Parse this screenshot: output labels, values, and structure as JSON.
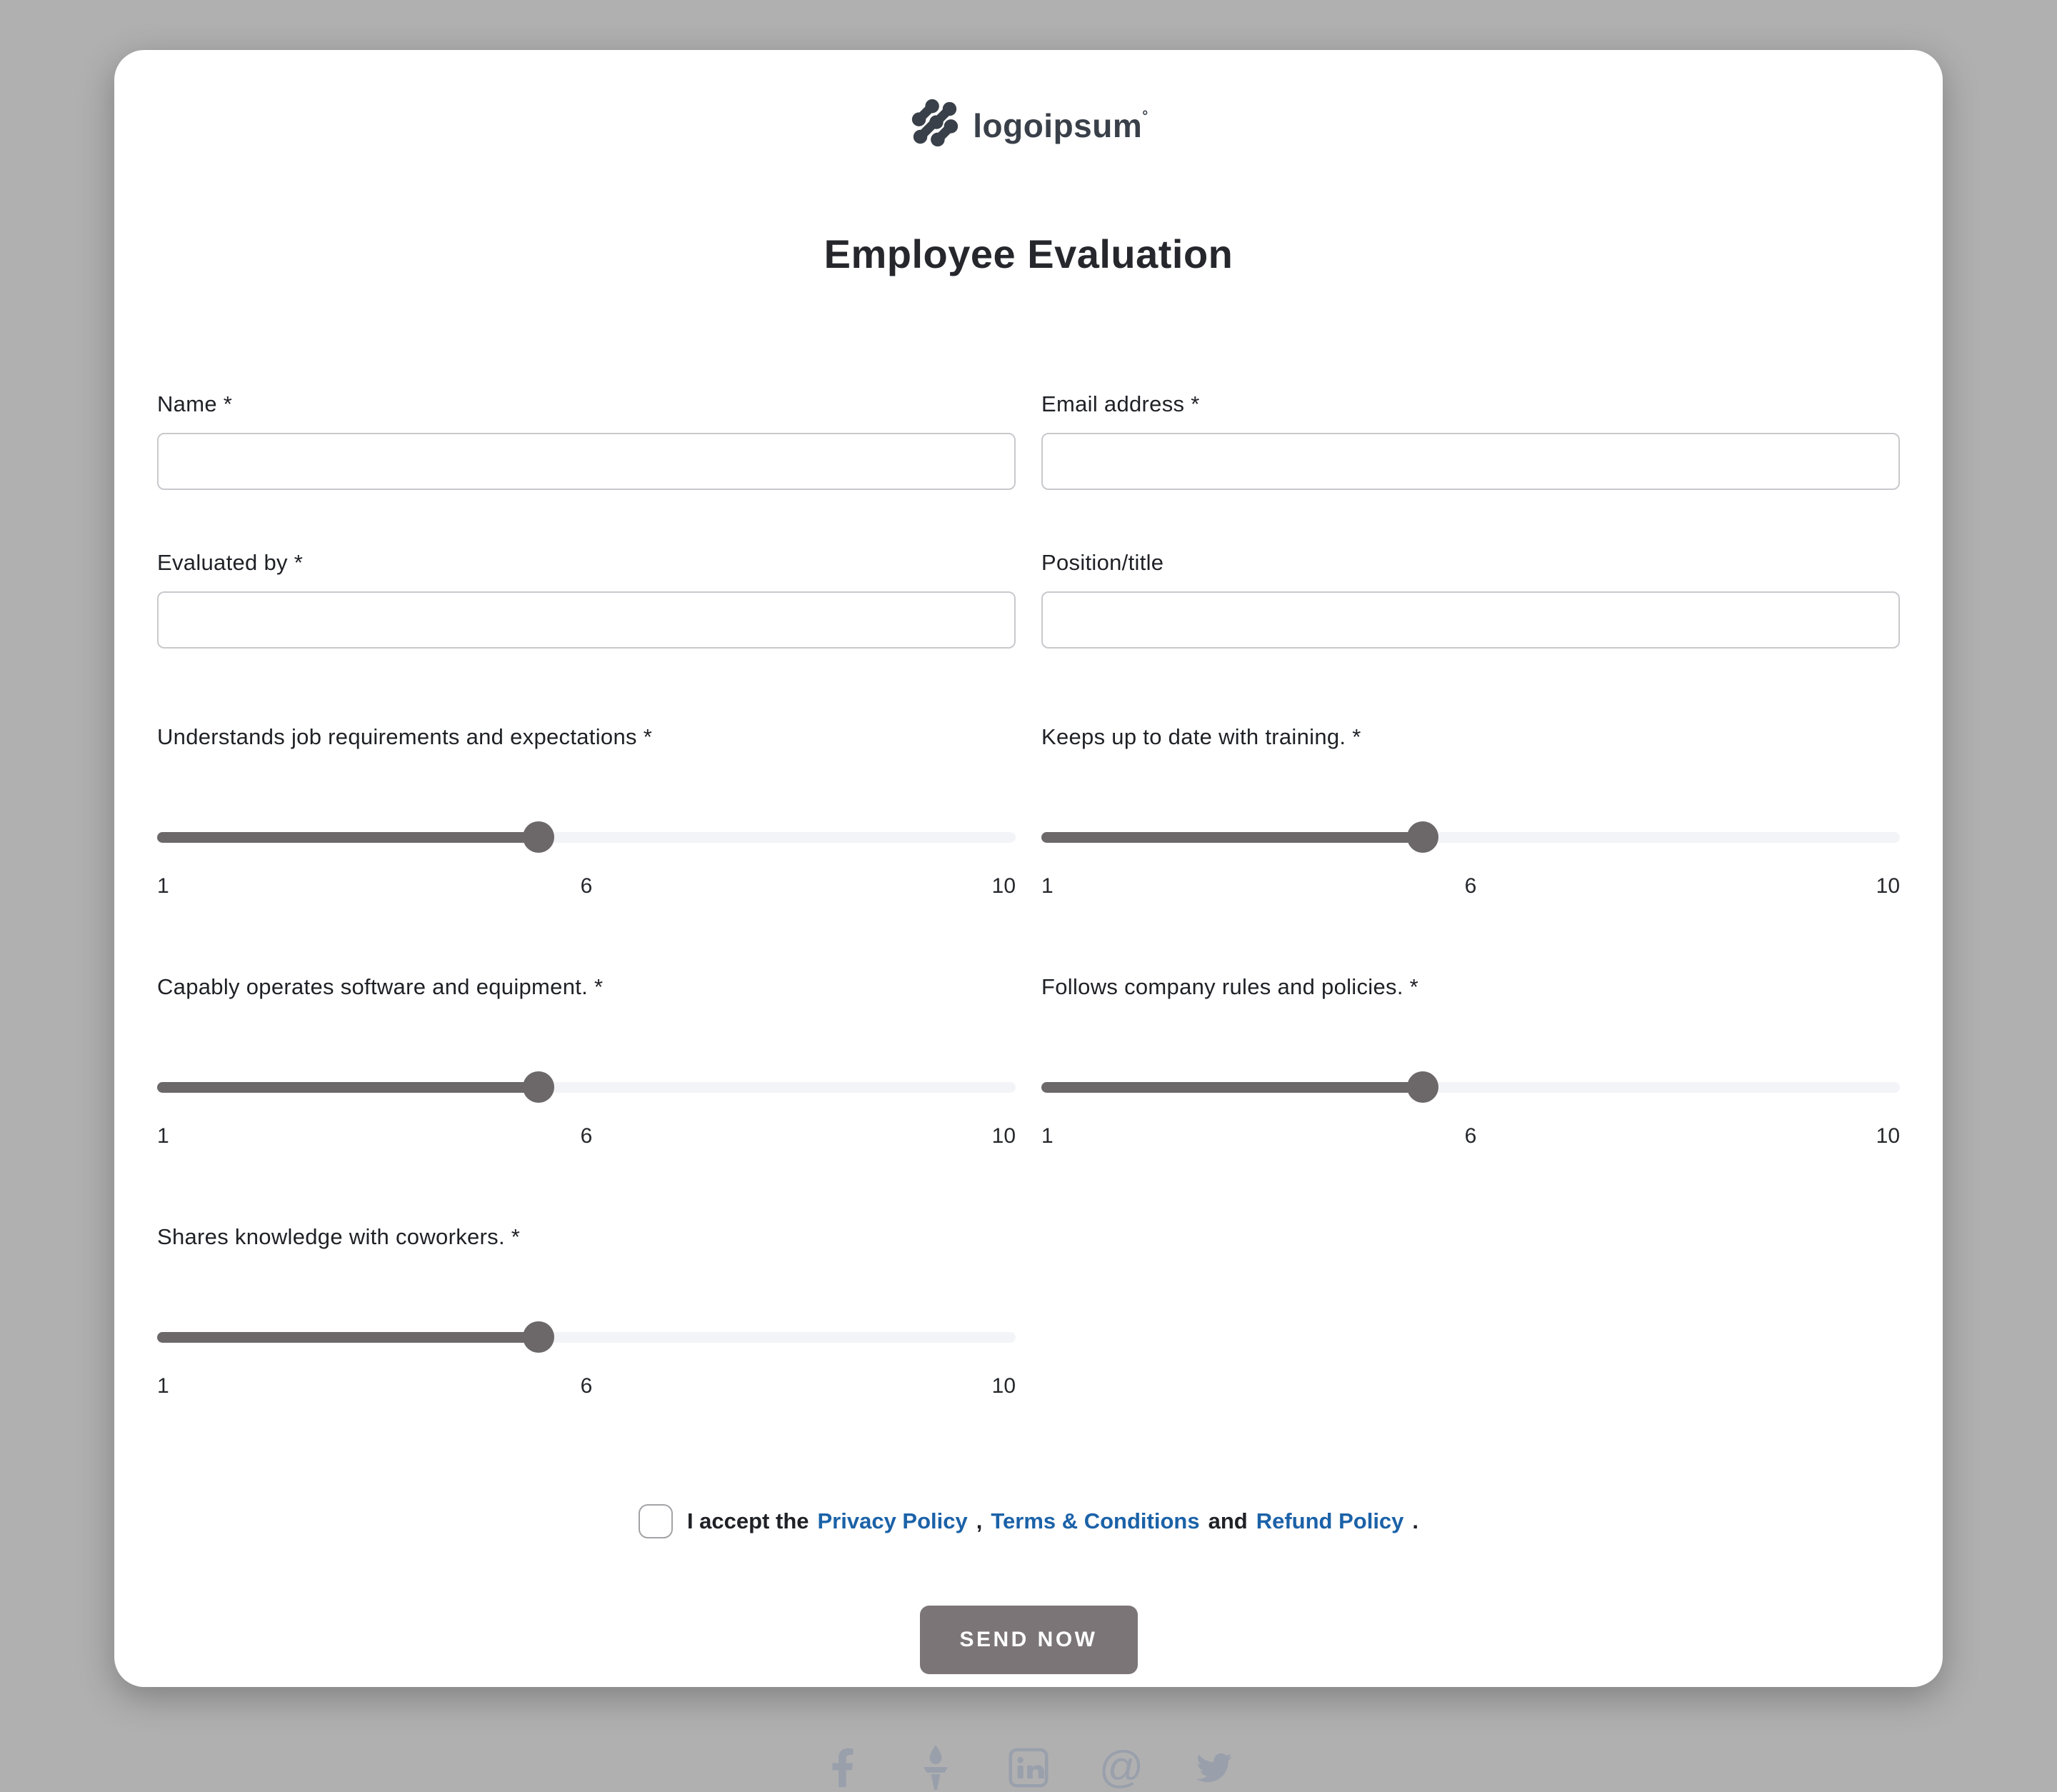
{
  "logo": {
    "text": "logoipsum",
    "tm": "°"
  },
  "page": {
    "title": "Employee Evaluation"
  },
  "form": {
    "fields": [
      {
        "label": "Name *",
        "value": "",
        "placeholder": ""
      },
      {
        "label": "Email address *",
        "value": "",
        "placeholder": ""
      },
      {
        "label": "Evaluated by *",
        "value": "",
        "placeholder": ""
      },
      {
        "label": "Position/title",
        "value": "",
        "placeholder": ""
      }
    ],
    "sliders": [
      {
        "label": "Understands job requirements and expectations *",
        "min": 1,
        "mid": 6,
        "max": 10,
        "value": 5
      },
      {
        "label": "Keeps up to date with training. *",
        "min": 1,
        "mid": 6,
        "max": 10,
        "value": 5
      },
      {
        "label": "Capably operates software and equipment. *",
        "min": 1,
        "mid": 6,
        "max": 10,
        "value": 5
      },
      {
        "label": "Follows company rules and policies. *",
        "min": 1,
        "mid": 6,
        "max": 10,
        "value": 5
      },
      {
        "label": "Shares knowledge with coworkers. *",
        "min": 1,
        "mid": 6,
        "max": 10,
        "value": 5
      }
    ],
    "consent": {
      "checked": false,
      "prefix": "I accept the",
      "privacy_link": "Privacy Policy",
      "comma": ",",
      "terms_link": "Terms & Conditions",
      "and_word": "and",
      "refund_link": "Refund Policy",
      "period": "."
    },
    "submit_label": "SEND NOW"
  },
  "footer": {
    "social_icons": [
      "facebook-icon",
      "torch-icon",
      "linkedin-icon",
      "at-icon",
      "twitter-icon"
    ]
  },
  "colors": {
    "page_background": "#b1b0b1",
    "card_background": "#ffffff",
    "text_dark": "#1f2126",
    "slider_fill": "#6c6869",
    "slider_track": "#f3f4f7",
    "link_blue": "#1b62a8",
    "button_gray": "#7b7578",
    "social_gray": "#99a0ab",
    "logo_dark": "#394049"
  }
}
